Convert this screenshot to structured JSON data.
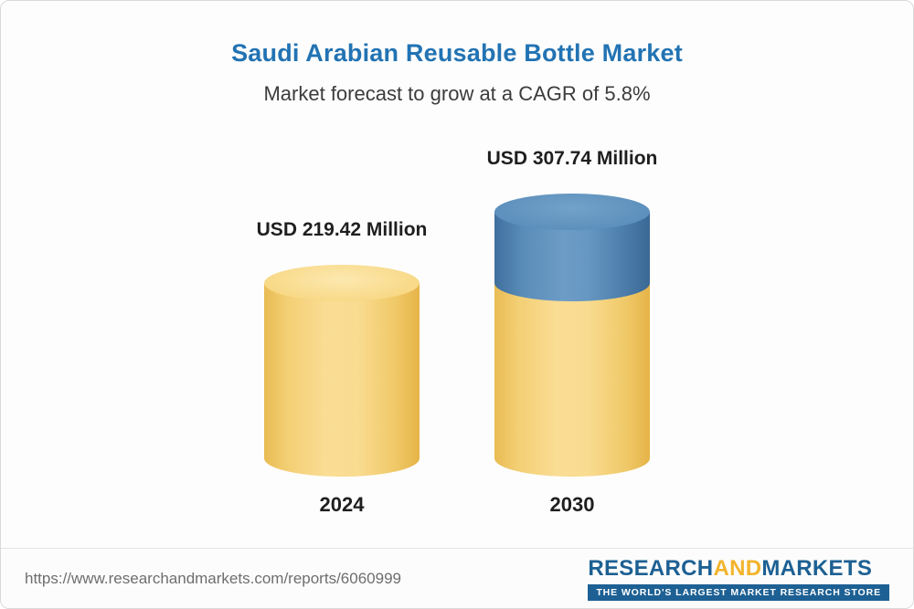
{
  "header": {
    "title": "Saudi Arabian Reusable Bottle Market",
    "subtitle": "Market forecast to grow at a CAGR of 5.8%"
  },
  "chart_data": {
    "type": "bar",
    "variant": "3d-cylinder",
    "title": "Saudi Arabian Reusable Bottle Market",
    "subtitle": "Market forecast to grow at a CAGR of 5.8%",
    "categories": [
      "2024",
      "2030"
    ],
    "values": [
      219.42,
      307.74
    ],
    "value_labels": [
      "USD 219.42 Million",
      "USD 307.74 Million"
    ],
    "unit": "USD Million",
    "cagr_percent": 5.8,
    "xlabel": "",
    "ylabel": "",
    "axis_visible": false,
    "grid": false,
    "legend": false,
    "colors": {
      "base_segment": "#F2CB69",
      "growth_segment": "#4E81AD"
    },
    "note": "2030 cylinder shows the 2024 baseline in yellow with the incremental growth segment stacked on top in blue"
  },
  "footer": {
    "url": "https://www.researchandmarkets.com/reports/6060999",
    "logo": {
      "part1": "RESEARCH",
      "part2": "AND",
      "part3": "MARKETS",
      "tagline": "THE WORLD'S LARGEST MARKET RESEARCH STORE"
    }
  }
}
